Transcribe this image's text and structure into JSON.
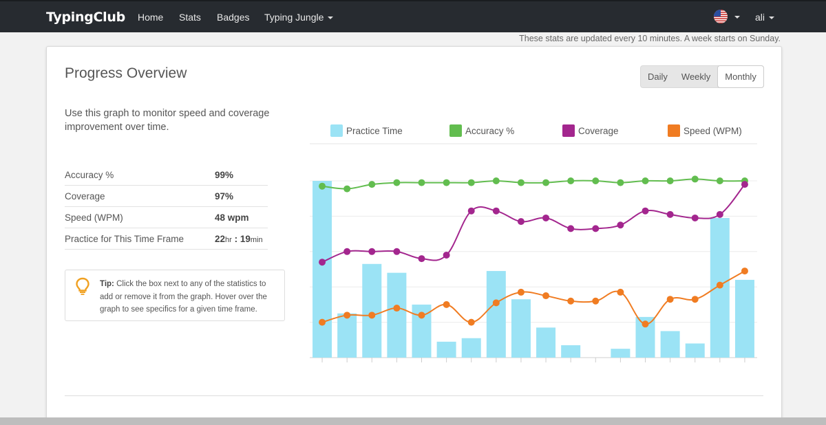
{
  "navbar": {
    "brand": "TypingClub",
    "links": [
      "Home",
      "Stats",
      "Badges",
      "Typing Jungle"
    ],
    "user": "ali"
  },
  "note": "These stats are updated every 10 minutes. A week starts on Sunday.",
  "overview": {
    "title": "Progress Overview",
    "periods": [
      "Daily",
      "Weekly",
      "Monthly"
    ],
    "active_period": "Monthly",
    "description": "Use this graph to monitor speed and coverage improvement over time.",
    "stats": [
      {
        "label": "Accuracy %",
        "value": "99%"
      },
      {
        "label": "Coverage",
        "value": "97%"
      },
      {
        "label": "Speed (WPM)",
        "value": "48 wpm"
      },
      {
        "label": "Practice for This Time Frame",
        "hours": "22",
        "hours_unit": "hr",
        "sep": ":",
        "minutes": "19",
        "minutes_unit": "min"
      }
    ],
    "tip": {
      "label": "Tip:",
      "text": "Click the box next to any of the statistics to add or remove it from the graph. Hover over the graph to see specifics for a given time frame."
    }
  },
  "colors": {
    "practice": "#9be3f5",
    "accuracy": "#62bd4f",
    "coverage": "#a3268e",
    "speed": "#f07c22",
    "tip": "#f0a020"
  },
  "chart_data": {
    "type": "bar+line",
    "legend": [
      "Practice Time",
      "Accuracy %",
      "Coverage",
      "Speed (WPM)"
    ],
    "categories_count": 18,
    "series": [
      {
        "name": "Practice Time",
        "type": "bar",
        "values": [
          100,
          25,
          53,
          48,
          30,
          9,
          11,
          49,
          33,
          17,
          7,
          0,
          5,
          23,
          15,
          8,
          79,
          44
        ]
      },
      {
        "name": "Accuracy %",
        "type": "line",
        "values": [
          97,
          95.5,
          98,
          99,
          99,
          99,
          99,
          100,
          99,
          99,
          100,
          100,
          99,
          100,
          100,
          101,
          100,
          100
        ]
      },
      {
        "name": "Coverage",
        "type": "line",
        "values": [
          54,
          60,
          60,
          60,
          56,
          58,
          83,
          83,
          77,
          79,
          73,
          73,
          75,
          83,
          81,
          79,
          81,
          98
        ]
      },
      {
        "name": "Speed (WPM)",
        "type": "line",
        "values": [
          20,
          24,
          24,
          28,
          24,
          30,
          20,
          31,
          37,
          35,
          32,
          32,
          37,
          19,
          33,
          33,
          41,
          49
        ]
      }
    ],
    "ylim": [
      0,
      100
    ]
  }
}
